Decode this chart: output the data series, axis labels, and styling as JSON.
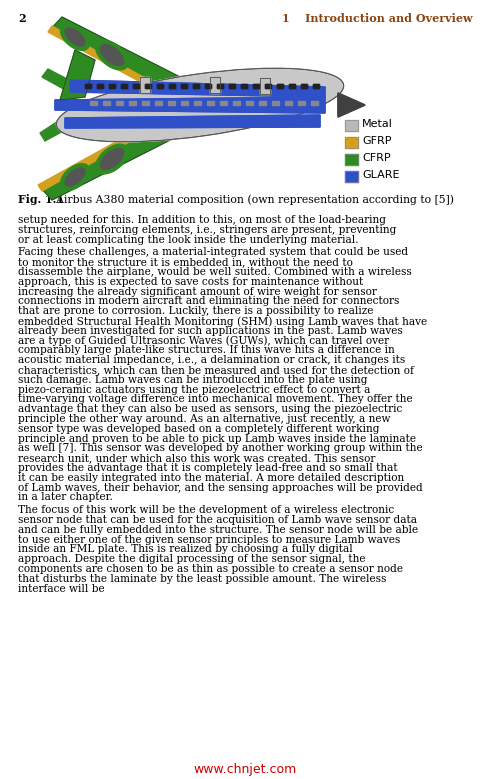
{
  "page_number": "2",
  "chapter_header": "1    Introduction and Overview",
  "fig_caption_bold": "Fig. 1.1",
  "fig_caption_rest": "  Airbus A380 material composition (own representation according to [5])",
  "legend_items": [
    {
      "label": "Metal",
      "color": "#b8b8b8"
    },
    {
      "label": "GFRP",
      "color": "#d4a020"
    },
    {
      "label": "CFRP",
      "color": "#2e8b22"
    },
    {
      "label": "GLARE",
      "color": "#3050c8"
    }
  ],
  "paragraph1": "setup needed for this. In addition to this, on most of the load-bearing structures, reinforcing elements, i.e., stringers are present, preventing or at least complicating the look inside the underlying material.",
  "paragraph2": "Facing these challenges, a material-integrated system that could be used to monitor the structure it is embedded in, without the need to disassemble the airplane, would be well suited. Combined with a wireless approach, this is expected to save costs for maintenance without increasing the already significant amount of wire weight for sensor connections in modern aircraft and eliminating the need for connectors that are prone to corrosion. Luckily, there is a possibility to realize embedded Structural Health Monitoring (SHM) using Lamb waves that have already been investigated for such applications in the past. Lamb waves are a type of Guided Ultrasonic Waves (GUWs), which can travel over comparably large plate-like structures. If this wave hits a difference in acoustic material impedance, i.e., a delamination or crack, it changes its characteristics, which can then be measured and used for the detection of such damage. Lamb waves can be introduced into the plate using piezo-ceramic actuators using the piezoelectric effect to convert a time-varying voltage difference into mechanical movement. They offer the advantage that they can also be used as sensors, using the piezoelectric principle the other way around. As an alternative, just recently, a new sensor type was developed based on a completely different working principle and proven to be able to pick up Lamb waves inside the laminate as well [7]. This sensor was developed by another working group within the research unit, under which also this work was created. This sensor provides the advantage that it is completely lead-free and so small that it can be easily integrated into the material. A more detailed description of Lamb waves, their behavior, and the sensing approaches will be provided in a later chapter.",
  "paragraph3": "The focus of this work will be the development of a wireless electronic sensor node that can be used for the acquisition of Lamb wave sensor data and can be fully embedded into the structure. The sensor node will be able to use either one of the given sensor principles to measure Lamb waves inside an FML plate. This is realized by choosing a fully digital approach. Despite the digital processing of the sensor signal, the components are chosen to be as thin as possible to create a sensor node that disturbs the laminate by the least possible amount. The wireless interface will be",
  "watermark": "www.chnjet.com",
  "background_color": "#ffffff",
  "text_color": "#000000",
  "header_color": "#8b4513",
  "chapter_color": "#8b4513"
}
